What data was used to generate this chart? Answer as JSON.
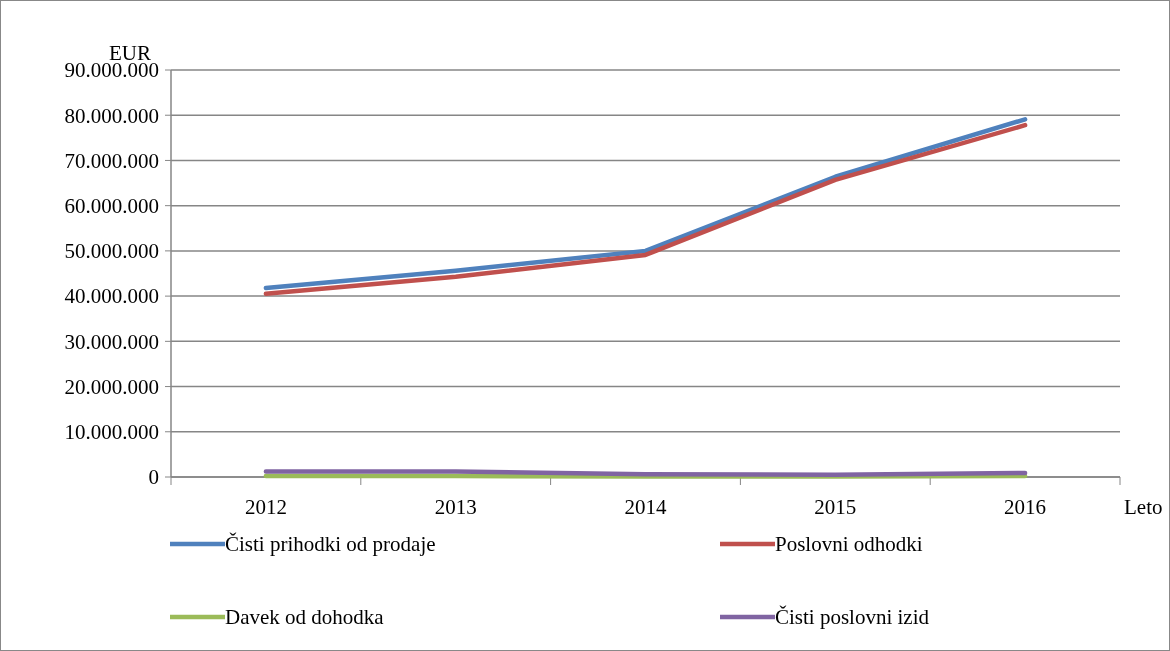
{
  "chart_data": {
    "type": "line",
    "ylabel": "EUR",
    "xlabel": "Leto",
    "categories": [
      "2012",
      "2013",
      "2014",
      "2015",
      "2016"
    ],
    "series": [
      {
        "name": "Čisti prihodki od prodaje",
        "color": "#4f81bd",
        "values": [
          41800000,
          45600000,
          50000000,
          66400000,
          79100000
        ]
      },
      {
        "name": "Poslovni odhodki",
        "color": "#c0504d",
        "values": [
          40500000,
          44300000,
          49100000,
          65700000,
          77800000
        ]
      },
      {
        "name": "Davek od dohodka",
        "color": "#9bbb59",
        "values": [
          200000,
          200000,
          100000,
          100000,
          200000
        ]
      },
      {
        "name": "Čisti poslovni izid",
        "color": "#8064a2",
        "values": [
          1200000,
          1200000,
          600000,
          500000,
          900000
        ]
      }
    ],
    "ylim": [
      0,
      90000000
    ],
    "yticks": [
      0,
      {
        "value": 10000000,
        "label": "10.000.000"
      },
      {
        "value": 20000000,
        "label": "20.000.000"
      },
      {
        "value": 30000000,
        "label": "30.000.000"
      },
      {
        "value": 40000000,
        "label": "40.000.000"
      },
      {
        "value": 50000000,
        "label": "50.000.000"
      },
      {
        "value": 60000000,
        "label": "60.000.000"
      },
      {
        "value": 70000000,
        "label": "70.000.000"
      },
      {
        "value": 80000000,
        "label": "80.000.000"
      },
      {
        "value": 90000000,
        "label": "90.000.000"
      }
    ],
    "grid": "y",
    "legend": "bottom",
    "marker": "none",
    "line_style": "solid"
  }
}
